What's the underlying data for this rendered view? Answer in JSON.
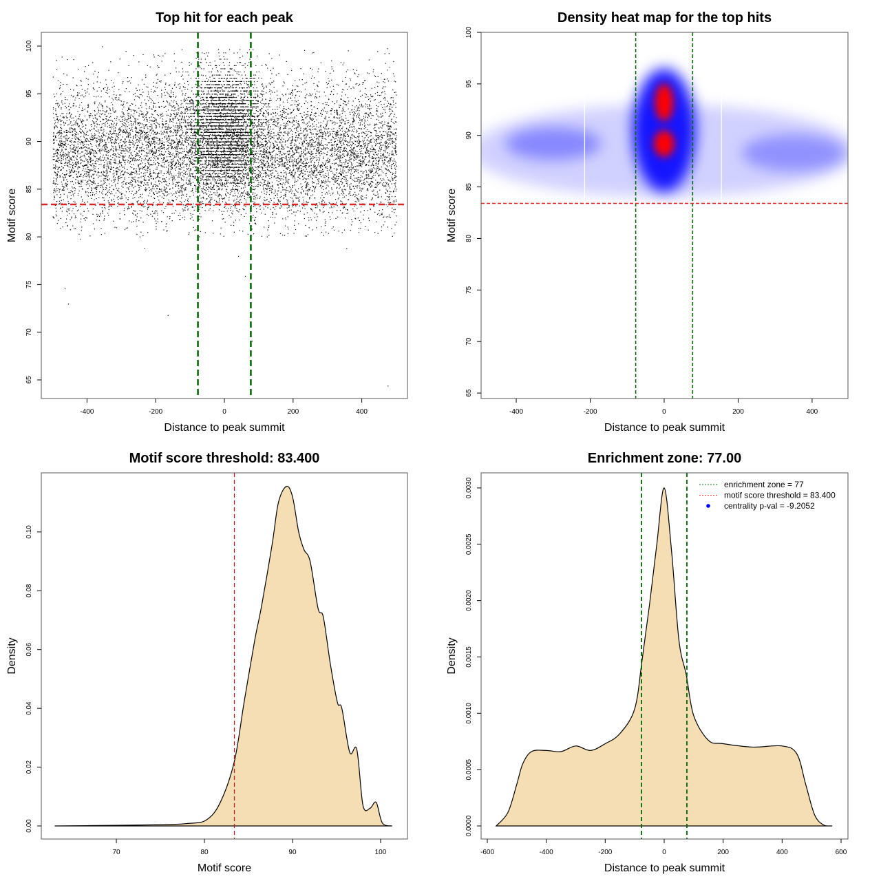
{
  "chart_data": [
    {
      "type": "scatter",
      "title": "Top hit for each peak",
      "xlabel": "Distance to peak summit",
      "ylabel": "Motif score",
      "xlim": [
        -533,
        533
      ],
      "ylim": [
        63.05,
        101.44
      ],
      "xticks": [
        -400,
        -200,
        0,
        200,
        400
      ],
      "yticks": [
        65,
        70,
        75,
        80,
        85,
        90,
        95,
        100
      ],
      "vlines": [
        -77,
        77
      ],
      "hline": 83.4,
      "bulk_distribution": {
        "background": {
          "n": 9000,
          "x_range": [
            -500,
            500
          ],
          "y_mean": 89,
          "y_sd": 3.6,
          "y_max": 100
        },
        "center": {
          "n": 3200,
          "x_mean": 0,
          "x_sd": 55,
          "y_mean": 91.5,
          "y_sd": 3.0,
          "y_max": 100
        }
      },
      "outliers": [
        [
          -465,
          74.6
        ],
        [
          -455,
          73.0
        ],
        [
          -165,
          71.8
        ],
        [
          60,
          75.9
        ],
        [
          80,
          69.1
        ],
        [
          40,
          78.0
        ],
        [
          475,
          64.4
        ],
        [
          -420,
          79.8
        ],
        [
          -233,
          78.8
        ],
        [
          355,
          78.8
        ]
      ]
    },
    {
      "type": "heatmap",
      "title": "Density heat map for the top hits",
      "xlabel": "Distance to peak summit",
      "ylabel": "Motif score",
      "xlim": [
        -495,
        497
      ],
      "ylim": [
        64.47,
        100
      ],
      "xticks": [
        -400,
        -200,
        0,
        200,
        400
      ],
      "yticks": [
        65,
        70,
        75,
        80,
        85,
        90,
        95,
        100
      ],
      "vlines": [
        -77,
        77
      ],
      "hline": 83.4,
      "components": [
        {
          "x": 0,
          "y": 88.5,
          "sx": 520,
          "sy": 4.5,
          "level": 0.18
        },
        {
          "x": -300,
          "y": 89.2,
          "sx": 130,
          "sy": 1.6,
          "level": 0.35
        },
        {
          "x": 350,
          "y": 88.3,
          "sx": 140,
          "sy": 1.8,
          "level": 0.3
        },
        {
          "x": 0,
          "y": 90.5,
          "sx": 85,
          "sy": 6.0,
          "level": 0.9
        },
        {
          "x": 0,
          "y": 93.2,
          "sx": 25,
          "sy": 1.8,
          "level": 1.0,
          "hot": true
        },
        {
          "x": 0,
          "y": 89.2,
          "sx": 28,
          "sy": 1.3,
          "level": 1.0,
          "hot": true
        }
      ]
    },
    {
      "type": "area",
      "title": "Motif score threshold: 83.400",
      "xlabel": "Motif score",
      "ylabel": "Density",
      "xlim": [
        61.48,
        103.05
      ],
      "ylim": [
        -0.00445,
        0.1201
      ],
      "xticks": [
        70,
        80,
        90,
        100
      ],
      "yticks": [
        0.0,
        0.02,
        0.04,
        0.06,
        0.08,
        0.1
      ],
      "ytick_labels": [
        "0.00",
        "0.02",
        "0.04",
        "0.06",
        "0.08",
        "0.10"
      ],
      "vlines": [
        83.4
      ],
      "x": [
        63,
        70,
        75,
        78,
        80.2,
        81.8,
        83.4,
        84.5,
        85.7,
        86.5,
        87.7,
        88.4,
        89.3,
        90,
        90.7,
        91.3,
        92,
        92.9,
        93.5,
        94.3,
        95.1,
        95.6,
        96.5,
        97.3,
        98,
        98.8,
        99.5,
        100.2,
        101.3
      ],
      "y": [
        0,
        0.0002,
        0.0004,
        0.0008,
        0.002,
        0.008,
        0.022,
        0.042,
        0.063,
        0.075,
        0.096,
        0.11,
        0.1155,
        0.112,
        0.1,
        0.094,
        0.09,
        0.074,
        0.071,
        0.055,
        0.042,
        0.04,
        0.025,
        0.026,
        0.007,
        0.006,
        0.008,
        0.001,
        0
      ]
    },
    {
      "type": "area",
      "title": "Enrichment zone: 77.00",
      "xlabel": "Distance to peak summit",
      "ylabel": "Density",
      "xlim": [
        -621,
        623.4
      ],
      "ylim": [
        -0.000116,
        0.003134
      ],
      "xticks": [
        -600,
        -400,
        -200,
        0,
        200,
        400,
        600
      ],
      "yticks": [
        0,
        0.0005,
        0.001,
        0.0015,
        0.002,
        0.0025,
        0.003
      ],
      "ytick_labels": [
        "0.0000",
        "0.0005",
        "0.0010",
        "0.0015",
        "0.0020",
        "0.0025",
        "0.0030"
      ],
      "vlines": [
        -77,
        77
      ],
      "x": [
        -570,
        -530,
        -500,
        -480,
        -450,
        -400,
        -350,
        -300,
        -250,
        -200,
        -150,
        -100,
        -75,
        -50,
        -25,
        0,
        25,
        50,
        75,
        100,
        150,
        200,
        300,
        400,
        450,
        480,
        510,
        540,
        570
      ],
      "y": [
        0,
        0.00012,
        0.00037,
        0.00055,
        0.00066,
        0.00067,
        0.00066,
        0.00071,
        0.00067,
        0.00073,
        0.00082,
        0.00104,
        0.00147,
        0.00196,
        0.0025,
        0.003,
        0.00244,
        0.00165,
        0.00134,
        0.00098,
        0.00076,
        0.00073,
        0.0007,
        0.00071,
        0.00064,
        0.00037,
        0.0001,
        1e-05,
        0
      ],
      "legend": {
        "position": "top-right",
        "entries": [
          {
            "label": "enrichment zone = 77",
            "color": "#006400",
            "style": "dotted-line"
          },
          {
            "label": "motif score threshold = 83.400",
            "color": "#e03030",
            "style": "dotted-line"
          },
          {
            "label": "centrality p-val = -9.2052",
            "color": "#0000ff",
            "style": "point"
          }
        ]
      }
    }
  ],
  "colors": {
    "green": "#006400",
    "red": "#dd2222",
    "darkred": "#b22222",
    "fill": "#f5deb3"
  }
}
